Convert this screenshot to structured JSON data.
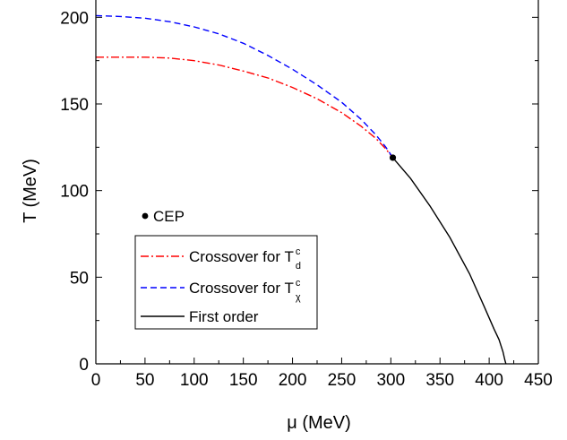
{
  "chart_data": {
    "type": "line",
    "title": "",
    "xlabel": "μ (MeV)",
    "ylabel": "T (MeV)",
    "xlim": [
      0,
      450
    ],
    "ylim": [
      0,
      210
    ],
    "x_ticks": [
      0,
      50,
      100,
      150,
      200,
      250,
      300,
      350,
      400,
      450
    ],
    "y_ticks": [
      0,
      50,
      100,
      150,
      200
    ],
    "grid": false,
    "series": [
      {
        "name": "Crossover for T",
        "sup": "c",
        "sub": "d",
        "style": "dash-dot",
        "color": "#ff0000",
        "points": [
          [
            0,
            177
          ],
          [
            25,
            177
          ],
          [
            50,
            177
          ],
          [
            75,
            176.5
          ],
          [
            100,
            175
          ],
          [
            125,
            172.5
          ],
          [
            150,
            169
          ],
          [
            175,
            165
          ],
          [
            200,
            159.5
          ],
          [
            225,
            153
          ],
          [
            250,
            145
          ],
          [
            270,
            137
          ],
          [
            285,
            130
          ],
          [
            295,
            124
          ],
          [
            302,
            119
          ]
        ]
      },
      {
        "name": "Crossover for T",
        "sup": "c",
        "sub": "χ",
        "style": "dashed",
        "color": "#0000ff",
        "points": [
          [
            0,
            201
          ],
          [
            25,
            200.5
          ],
          [
            50,
            199.5
          ],
          [
            75,
            197.5
          ],
          [
            100,
            194.5
          ],
          [
            125,
            190.5
          ],
          [
            150,
            185
          ],
          [
            175,
            178
          ],
          [
            200,
            170
          ],
          [
            225,
            161
          ],
          [
            250,
            151
          ],
          [
            270,
            141
          ],
          [
            285,
            132
          ],
          [
            295,
            125
          ],
          [
            302,
            119
          ]
        ]
      },
      {
        "name": "First order",
        "style": "solid",
        "color": "#000000",
        "points": [
          [
            302,
            119
          ],
          [
            320,
            107
          ],
          [
            340,
            91
          ],
          [
            360,
            73
          ],
          [
            380,
            52
          ],
          [
            395,
            33
          ],
          [
            405,
            20
          ],
          [
            410,
            14
          ],
          [
            414,
            7
          ],
          [
            416,
            2
          ],
          [
            417,
            0
          ]
        ]
      }
    ],
    "cep": {
      "label": "CEP",
      "x": 302,
      "y": 119
    },
    "legend_position": "lower-left"
  }
}
